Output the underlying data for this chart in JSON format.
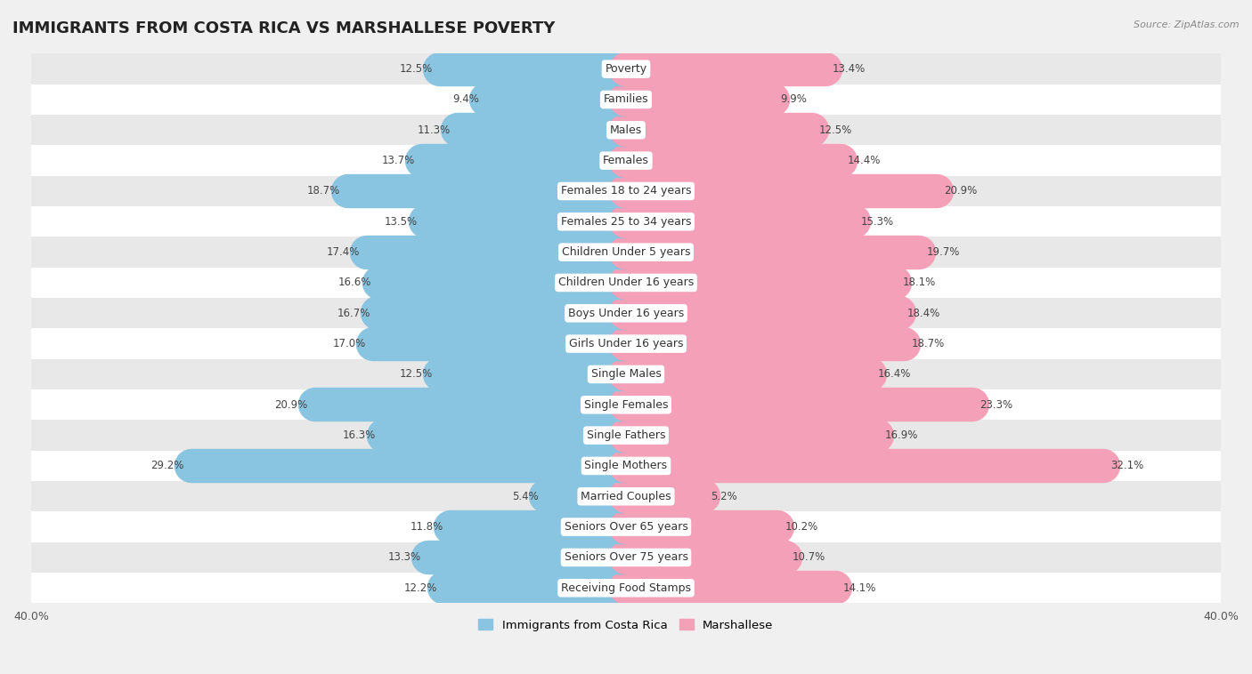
{
  "title": "IMMIGRANTS FROM COSTA RICA VS MARSHALLESE POVERTY",
  "source": "Source: ZipAtlas.com",
  "categories": [
    "Poverty",
    "Families",
    "Males",
    "Females",
    "Females 18 to 24 years",
    "Females 25 to 34 years",
    "Children Under 5 years",
    "Children Under 16 years",
    "Boys Under 16 years",
    "Girls Under 16 years",
    "Single Males",
    "Single Females",
    "Single Fathers",
    "Single Mothers",
    "Married Couples",
    "Seniors Over 65 years",
    "Seniors Over 75 years",
    "Receiving Food Stamps"
  ],
  "left_values": [
    12.5,
    9.4,
    11.3,
    13.7,
    18.7,
    13.5,
    17.4,
    16.6,
    16.7,
    17.0,
    12.5,
    20.9,
    16.3,
    29.2,
    5.4,
    11.8,
    13.3,
    12.2
  ],
  "right_values": [
    13.4,
    9.9,
    12.5,
    14.4,
    20.9,
    15.3,
    19.7,
    18.1,
    18.4,
    18.7,
    16.4,
    23.3,
    16.9,
    32.1,
    5.2,
    10.2,
    10.7,
    14.1
  ],
  "left_color": "#89C4E1",
  "right_color": "#F4A0B8",
  "axis_max": 40.0,
  "legend_left": "Immigrants from Costa Rica",
  "legend_right": "Marshallese",
  "background_color": "#f0f0f0",
  "row_color_even": "#ffffff",
  "row_color_odd": "#e8e8e8",
  "title_fontsize": 13,
  "label_fontsize": 9,
  "value_fontsize": 8.5
}
